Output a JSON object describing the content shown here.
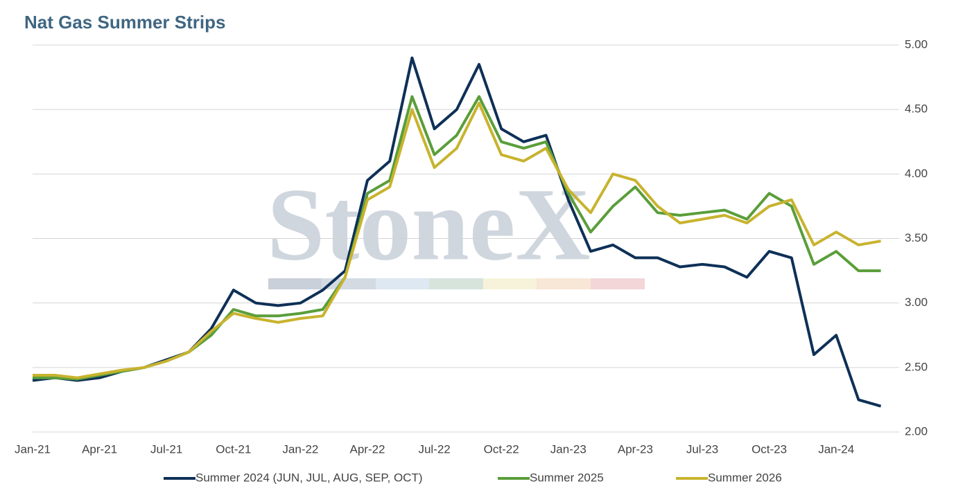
{
  "chart_data": {
    "type": "line",
    "title": "Nat Gas Summer Strips",
    "watermark": "StoneX",
    "categories": [
      "Jan-21",
      null,
      null,
      "Apr-21",
      null,
      null,
      "Jul-21",
      null,
      null,
      "Oct-21",
      null,
      null,
      "Jan-22",
      null,
      null,
      "Apr-22",
      null,
      null,
      "Jul-22",
      null,
      null,
      "Oct-22",
      null,
      null,
      "Jan-23",
      null,
      null,
      "Apr-23",
      null,
      null,
      "Jul-23",
      null,
      null,
      "Oct-23",
      null,
      null,
      "Jan-24",
      null,
      null
    ],
    "series": [
      {
        "name": "Summer 2024 (JUN, JUL, AUG, SEP, OCT)",
        "color": "#0e3057",
        "values": [
          2.4,
          2.42,
          2.4,
          2.42,
          2.47,
          2.5,
          2.56,
          2.62,
          2.8,
          3.1,
          3.0,
          2.98,
          3.0,
          3.1,
          3.25,
          3.95,
          4.1,
          4.9,
          4.35,
          4.5,
          4.85,
          4.35,
          4.25,
          4.3,
          3.8,
          3.4,
          3.45,
          3.35,
          3.35,
          3.28,
          3.3,
          3.28,
          3.2,
          3.4,
          3.35,
          2.6,
          2.75,
          2.25,
          2.2
        ]
      },
      {
        "name": "Summer 2025",
        "color": "#5a9e3a",
        "values": [
          2.42,
          2.42,
          2.41,
          2.44,
          2.47,
          2.5,
          2.55,
          2.62,
          2.75,
          2.95,
          2.9,
          2.9,
          2.92,
          2.95,
          3.2,
          3.85,
          3.95,
          4.6,
          4.15,
          4.3,
          4.6,
          4.25,
          4.2,
          4.25,
          3.85,
          3.55,
          3.75,
          3.9,
          3.7,
          3.68,
          3.7,
          3.72,
          3.65,
          3.85,
          3.75,
          3.3,
          3.4,
          3.25,
          3.25
        ]
      },
      {
        "name": "Summer 2026",
        "color": "#c8b32e",
        "values": [
          2.44,
          2.44,
          2.42,
          2.45,
          2.48,
          2.5,
          2.55,
          2.62,
          2.78,
          2.92,
          2.88,
          2.85,
          2.88,
          2.9,
          3.2,
          3.8,
          3.9,
          4.5,
          4.05,
          4.2,
          4.55,
          4.15,
          4.1,
          4.2,
          3.88,
          3.7,
          4.0,
          3.95,
          3.75,
          3.62,
          3.65,
          3.68,
          3.62,
          3.75,
          3.8,
          3.45,
          3.55,
          3.45,
          3.48
        ]
      }
    ],
    "ylim": [
      2.0,
      5.0
    ],
    "yticks": [
      {
        "value": 2,
        "label": "2.00"
      },
      {
        "value": 2.5,
        "label": "2.50"
      },
      {
        "value": 3,
        "label": "3.00"
      },
      {
        "value": 3.5,
        "label": "3.50"
      },
      {
        "value": 4,
        "label": "4.00"
      },
      {
        "value": 4.5,
        "label": "4.50"
      },
      {
        "value": 5,
        "label": "5.00"
      }
    ],
    "grid": true,
    "legend": "bottom"
  }
}
